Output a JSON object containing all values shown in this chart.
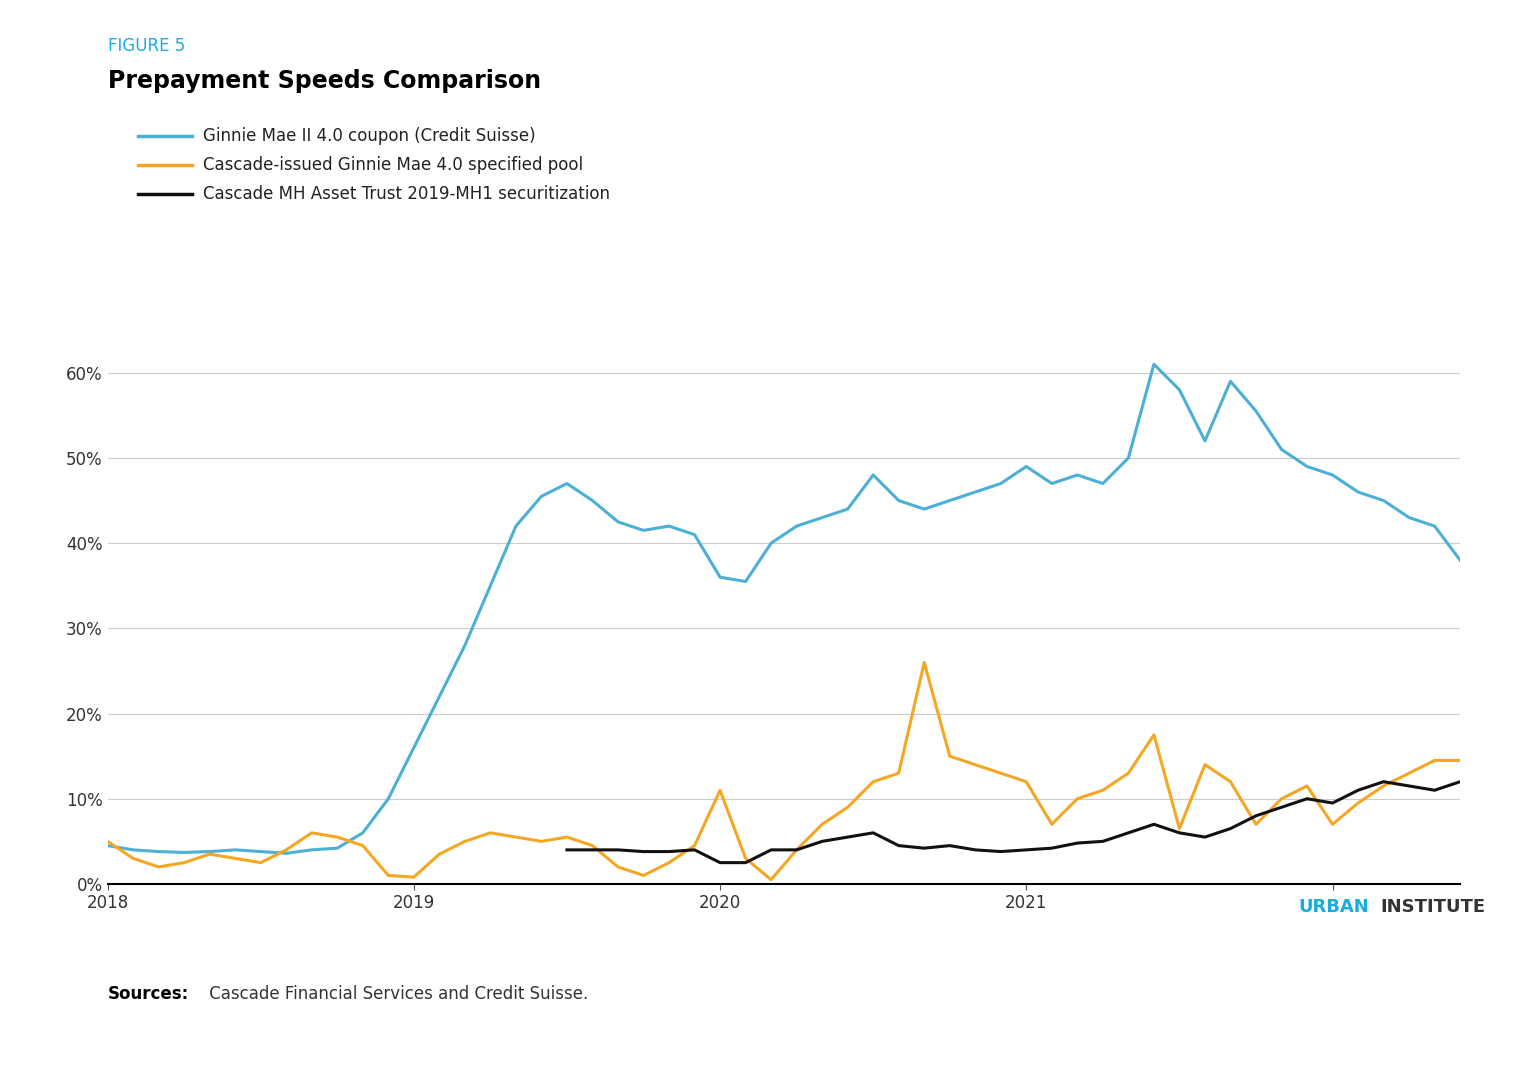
{
  "title": "Prepayment Speeds Comparison",
  "figure_label": "FIGURE 5",
  "figure_label_color": "#1AACDE",
  "title_color": "#000000",
  "background_color": "#ffffff",
  "ylim": [
    0,
    0.65
  ],
  "yticks": [
    0.0,
    0.1,
    0.2,
    0.3,
    0.4,
    0.5,
    0.6
  ],
  "ytick_labels": [
    "0%",
    "10%",
    "20%",
    "30%",
    "40%",
    "50%",
    "60%"
  ],
  "legend": [
    {
      "label": "Ginnie Mae II 4.0 coupon (Credit Suisse)",
      "color": "#4BAFD6"
    },
    {
      "label": "Cascade-issued Ginnie Mae 4.0 specified pool",
      "color": "#F5A623"
    },
    {
      "label": "Cascade MH Asset Trust 2019-MH1 securitization",
      "color": "#111111"
    }
  ],
  "blue_series": {
    "x": [
      0,
      1,
      2,
      3,
      4,
      5,
      6,
      7,
      8,
      9,
      10,
      11,
      12,
      13,
      14,
      15,
      16,
      17,
      18,
      19,
      20,
      21,
      22,
      23,
      24,
      25,
      26,
      27,
      28,
      29,
      30,
      31,
      32,
      33,
      34,
      35,
      36,
      37,
      38,
      39,
      40,
      41,
      42,
      43,
      44,
      45,
      46,
      47,
      48,
      49,
      50,
      51,
      52,
      53
    ],
    "y": [
      0.045,
      0.04,
      0.038,
      0.037,
      0.038,
      0.04,
      0.038,
      0.036,
      0.04,
      0.042,
      0.06,
      0.1,
      0.16,
      0.22,
      0.28,
      0.35,
      0.42,
      0.455,
      0.47,
      0.45,
      0.425,
      0.415,
      0.42,
      0.41,
      0.36,
      0.355,
      0.4,
      0.42,
      0.43,
      0.44,
      0.48,
      0.45,
      0.44,
      0.45,
      0.46,
      0.47,
      0.49,
      0.47,
      0.48,
      0.47,
      0.5,
      0.61,
      0.58,
      0.52,
      0.59,
      0.555,
      0.51,
      0.49,
      0.48,
      0.46,
      0.45,
      0.43,
      0.42,
      0.38
    ]
  },
  "gold_series": {
    "x": [
      0,
      1,
      2,
      3,
      4,
      5,
      6,
      7,
      8,
      9,
      10,
      11,
      12,
      13,
      14,
      15,
      16,
      17,
      18,
      19,
      20,
      21,
      22,
      23,
      24,
      25,
      26,
      27,
      28,
      29,
      30,
      31,
      32,
      33,
      34,
      35,
      36,
      37,
      38,
      39,
      40,
      41,
      42,
      43,
      44,
      45,
      46,
      47,
      48,
      49,
      50,
      51,
      52,
      53
    ],
    "y": [
      0.05,
      0.03,
      0.02,
      0.025,
      0.035,
      0.03,
      0.025,
      0.04,
      0.06,
      0.055,
      0.045,
      0.01,
      0.008,
      0.035,
      0.05,
      0.06,
      0.055,
      0.05,
      0.055,
      0.045,
      0.02,
      0.01,
      0.025,
      0.045,
      0.11,
      0.03,
      0.005,
      0.04,
      0.07,
      0.09,
      0.12,
      0.13,
      0.26,
      0.15,
      0.14,
      0.13,
      0.12,
      0.07,
      0.1,
      0.11,
      0.13,
      0.175,
      0.065,
      0.14,
      0.12,
      0.07,
      0.1,
      0.115,
      0.07,
      0.095,
      0.115,
      0.13,
      0.145,
      0.145
    ]
  },
  "black_series": {
    "x": [
      18,
      19,
      20,
      21,
      22,
      23,
      24,
      25,
      26,
      27,
      28,
      29,
      30,
      31,
      32,
      33,
      34,
      35,
      36,
      37,
      38,
      39,
      40,
      41,
      42,
      43,
      44,
      45,
      46,
      47,
      48,
      49,
      50,
      51,
      52,
      53
    ],
    "y": [
      0.04,
      0.04,
      0.04,
      0.038,
      0.038,
      0.04,
      0.025,
      0.025,
      0.04,
      0.04,
      0.05,
      0.055,
      0.06,
      0.045,
      0.042,
      0.045,
      0.04,
      0.038,
      0.04,
      0.042,
      0.048,
      0.05,
      0.06,
      0.07,
      0.06,
      0.055,
      0.065,
      0.08,
      0.09,
      0.1,
      0.095,
      0.11,
      0.12,
      0.115,
      0.11,
      0.12
    ]
  },
  "x_tick_positions": [
    0,
    12,
    24,
    36,
    48
  ],
  "x_tick_labels": [
    "2018",
    "2019",
    "2020",
    "2021",
    ""
  ],
  "urban_color": "#1AACDE",
  "institute_color": "#333333"
}
